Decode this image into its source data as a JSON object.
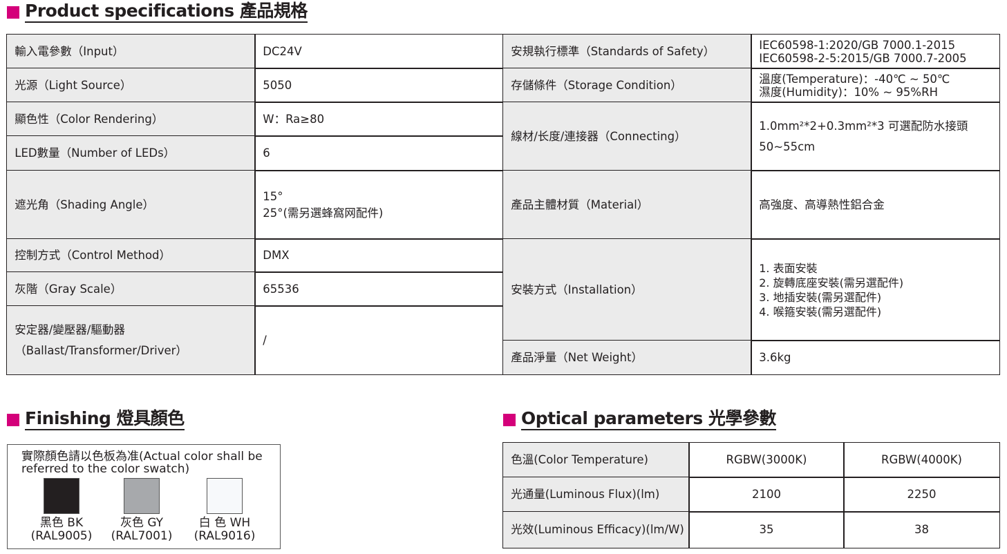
{
  "spec": {
    "title": "Product specifications 產品規格",
    "left": [
      {
        "label": "輸入電參數（Input）",
        "value": [
          "DC24V"
        ]
      },
      {
        "label": "光源（Light Source）",
        "value": [
          "5050"
        ]
      },
      {
        "label": "顯色性（Color Rendering）",
        "value": [
          "W：Ra≥80"
        ]
      },
      {
        "label": "LED數量（Number of LEDs）",
        "value": [
          "6"
        ]
      },
      {
        "label": "遮光角（Shading Angle）",
        "value": [
          "15°",
          "25°(需另選蜂窩网配件)"
        ]
      },
      {
        "label": "控制方式（Control Method）",
        "value": [
          "DMX"
        ]
      },
      {
        "label": "灰階（Gray Scale）",
        "value": [
          "65536"
        ]
      },
      {
        "label": "安定器/變壓器/驅動器\n（Ballast/Transformer/Driver）",
        "value": [
          "/"
        ]
      }
    ],
    "right": [
      {
        "label": "安規執行標準（Standards of Safety）",
        "value": [
          "IEC60598-1:2020/GB 7000.1-2015",
          "IEC60598-2-5:2015/GB 7000.7-2005"
        ]
      },
      {
        "label": "存儲條件（Storage Condition）",
        "value": [
          "溫度(Temperature)：-40℃ ~ 50℃",
          "濕度(Humidity)：10% ~ 95%RH"
        ]
      },
      {
        "label": "線材/长度/連接器（Connecting）",
        "value": [
          "1.0mm²*2+0.3mm²*3 可選配防水接頭",
          "50~55cm"
        ]
      },
      {
        "label": "產品主體材質（Material）",
        "value": [
          "高強度、高導熱性鋁合金"
        ]
      },
      {
        "label": "安裝方式（Installation）",
        "value": [
          "1. 表面安裝",
          "2. 旋轉底座安裝(需另選配件)",
          "3. 地插安裝(需另選配件)",
          "4. 喉箍安裝(需另選配件)"
        ]
      },
      {
        "label": "產品淨量（Net Weight）",
        "value": [
          "3.6kg"
        ]
      }
    ]
  },
  "finishing": {
    "title": "Finishing 燈具顏色",
    "note": "實際顏色請以色板為准(Actual color shall be referred to the color swatch)",
    "swatches": [
      {
        "name": "黑色 BK",
        "code": "(RAL9005)",
        "color": "#231f20"
      },
      {
        "name": "灰色 GY",
        "code": "(RAL7001)",
        "color": "#a7a9ac"
      },
      {
        "name": "白 色 WH",
        "code": "(RAL9016)",
        "color": "#f7f9fb"
      }
    ]
  },
  "optical": {
    "title": "Optical parameters 光學參數",
    "rows": [
      [
        "色溫(Color Temperature)",
        "RGBW(3000K)",
        "RGBW(4000K)"
      ],
      [
        "光通量(Luminous Flux)(lm)",
        "2100",
        "2250"
      ],
      [
        "光效(Luminous Efficacy)(lm/W)",
        "35",
        "38"
      ]
    ]
  },
  "colors": {
    "accent": "#d4007a",
    "label_bg": "#ebebeb"
  }
}
